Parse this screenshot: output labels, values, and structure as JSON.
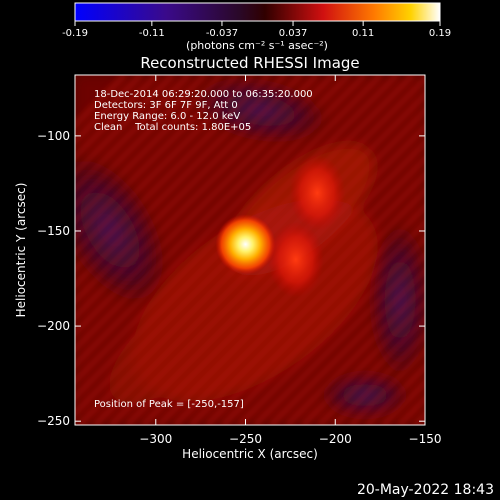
{
  "chart_data": {
    "type": "heatmap",
    "title": "Reconstructed RHESSI Image",
    "xlabel": "Heliocentric X (arcsec)",
    "ylabel": "Heliocentric Y (arcsec)",
    "xlim": [
      -345,
      -150
    ],
    "ylim": [
      -252,
      -68
    ],
    "xticks": [
      -300,
      -250,
      -200,
      -150
    ],
    "yticks": [
      -100,
      -150,
      -200,
      -250
    ],
    "colorbar": {
      "min": -0.19,
      "max": 0.19,
      "ticks": [
        "-0.19",
        "-0.11",
        "-0.037",
        "0.037",
        "0.11",
        "0.19"
      ],
      "tick_values": [
        -0.19,
        -0.11,
        -0.037,
        0.037,
        0.11,
        0.19
      ],
      "label": "(photons cm⁻² s⁻¹ asec⁻²)",
      "colormap": "heat (black-blue-purple-red-orange-yellow-white)"
    },
    "annotations": [
      "18-Dec-2014 06:29:20.000 to 06:35:20.000",
      "Detectors: 3F 6F 7F 9F, Att 0",
      "Energy Range: 6.0 - 12.0 keV",
      "Clean    Total counts: 1.80E+05"
    ],
    "peak_label": "Position of Peak = [-250,-157]",
    "peak": {
      "x": -250,
      "y": -157
    },
    "secondary_sources": [
      {
        "x": -210,
        "y": -130
      },
      {
        "x": -222,
        "y": -165
      }
    ],
    "grid": false
  },
  "footer": {
    "timestamp": "20-May-2022 18:43"
  }
}
